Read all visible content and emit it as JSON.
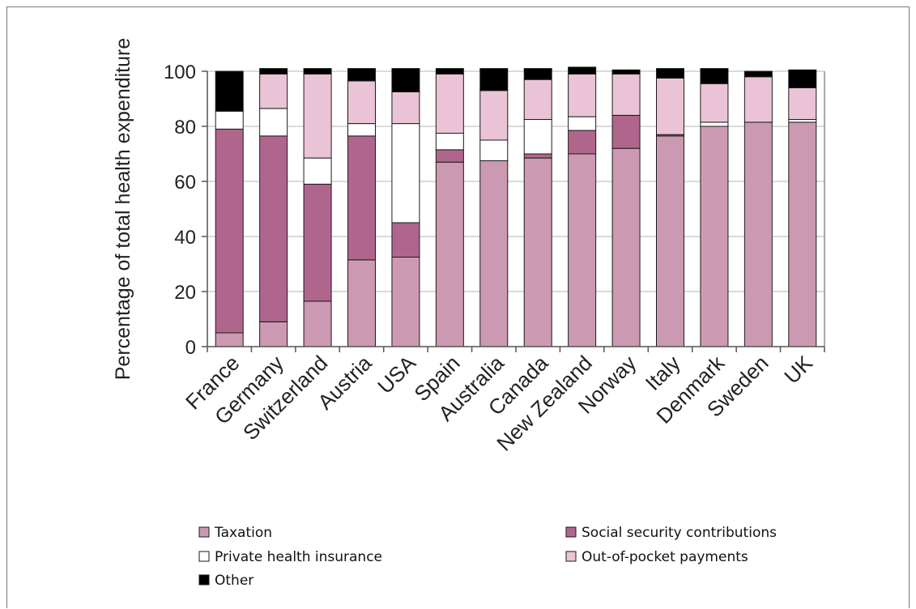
{
  "chart_data": {
    "type": "bar",
    "stacked": true,
    "title": "",
    "xlabel": "",
    "ylabel": "Percentage of total health expenditure",
    "ylim": [
      0,
      100
    ],
    "yticks": [
      0,
      20,
      40,
      60,
      80,
      100
    ],
    "grid": true,
    "legend_position": "bottom",
    "categories": [
      "France",
      "Germany",
      "Switzerland",
      "Austria",
      "USA",
      "Spain",
      "Australia",
      "Canada",
      "New Zealand",
      "Norway",
      "Italy",
      "Denmark",
      "Sweden",
      "UK"
    ],
    "series": [
      {
        "name": "Taxation",
        "color": "#cc99b3",
        "values": [
          5,
          9,
          16.5,
          31.5,
          32.5,
          67,
          67.5,
          68.5,
          70,
          72,
          76.5,
          80,
          81.5,
          81.5
        ]
      },
      {
        "name": "Social security contributions",
        "color": "#b0668c",
        "values": [
          74,
          67.5,
          42.5,
          45,
          12.5,
          4.5,
          0,
          1.5,
          8.5,
          12,
          0.5,
          0,
          0,
          0
        ]
      },
      {
        "name": "Private health insurance",
        "color": "#ffffff",
        "values": [
          6.5,
          10,
          9.5,
          4.5,
          36,
          6,
          7.5,
          12.5,
          5,
          0,
          0,
          1.5,
          0,
          1
        ]
      },
      {
        "name": "Out-of-pocket payments",
        "color": "#ebc3d7",
        "values": [
          0,
          12.5,
          30.5,
          15.5,
          11.5,
          21.5,
          18,
          14.5,
          15.5,
          15,
          20.5,
          14,
          16.5,
          11.5
        ]
      },
      {
        "name": "Other",
        "color": "#000000",
        "values": [
          14.5,
          2,
          2,
          4.5,
          8.5,
          2,
          8,
          4,
          2.5,
          1.5,
          3.5,
          5.5,
          2,
          6.5
        ]
      }
    ]
  },
  "legend": {
    "items": [
      {
        "label": "Taxation",
        "color": "#cc99b3"
      },
      {
        "label": "Social security contributions",
        "color": "#b0668c"
      },
      {
        "label": "Private health insurance",
        "color": "#ffffff"
      },
      {
        "label": "Out-of-pocket payments",
        "color": "#ebc3d7"
      },
      {
        "label": "Other",
        "color": "#000000"
      }
    ]
  }
}
